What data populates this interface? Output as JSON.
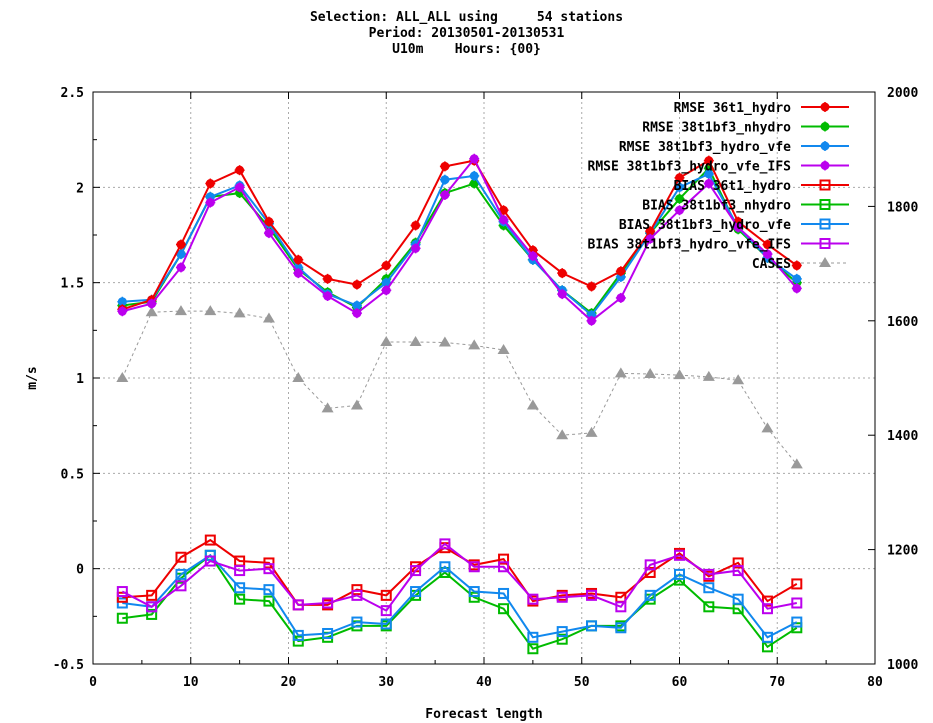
{
  "title": {
    "line1": "Selection: ALL_ALL using     54 stations",
    "line2": "Period: 20130501-20130531",
    "line3": "U10m    Hours: {00}"
  },
  "colors": {
    "red": "#ee0000",
    "green": "#00bb00",
    "blue": "#1188ee",
    "violet": "#bb00ee",
    "grey": "#999999",
    "grid": "#aaaaaa"
  },
  "chart_data": {
    "type": "line",
    "xlabel": "Forecast length",
    "ylabel": "m/s",
    "xlim": [
      0,
      80
    ],
    "ylim": [
      -0.5,
      2.5
    ],
    "y2lim": [
      1000,
      2000
    ],
    "xticks": [
      "0",
      "10",
      "20",
      "30",
      "40",
      "50",
      "60",
      "70",
      "80"
    ],
    "yticks": [
      "-0.5",
      "0",
      "0.5",
      "1",
      "1.5",
      "2",
      "2.5"
    ],
    "y2ticks": [
      "1000",
      "1200",
      "1400",
      "1600",
      "1800",
      "2000"
    ],
    "grid": true,
    "legend_position": "top-right",
    "x": [
      3,
      6,
      9,
      12,
      15,
      18,
      21,
      24,
      27,
      30,
      33,
      36,
      39,
      42,
      45,
      48,
      51,
      54,
      57,
      60,
      63,
      66,
      69,
      72
    ],
    "series": [
      {
        "name": "RMSE 36t1_hydro",
        "color": "red",
        "marker": "filled-circle",
        "axis": "y1",
        "values": [
          1.36,
          1.41,
          1.7,
          2.02,
          2.09,
          1.82,
          1.62,
          1.52,
          1.49,
          1.59,
          1.8,
          2.11,
          2.14,
          1.88,
          1.67,
          1.55,
          1.48,
          1.56,
          1.77,
          2.05,
          2.14,
          1.82,
          1.7,
          1.59
        ]
      },
      {
        "name": "RMSE 38t1bf3_nhydro",
        "color": "green",
        "marker": "filled-circle",
        "axis": "y1",
        "values": [
          1.38,
          1.4,
          1.65,
          1.95,
          1.97,
          1.79,
          1.57,
          1.45,
          1.37,
          1.52,
          1.71,
          1.97,
          2.02,
          1.8,
          1.62,
          1.46,
          1.34,
          1.55,
          1.76,
          1.94,
          2.1,
          1.78,
          1.63,
          1.5
        ]
      },
      {
        "name": "RMSE 38t1bf3_hydro_vfe",
        "color": "blue",
        "marker": "filled-circle",
        "axis": "y1",
        "values": [
          1.4,
          1.41,
          1.65,
          1.95,
          2.01,
          1.81,
          1.58,
          1.44,
          1.38,
          1.5,
          1.7,
          2.04,
          2.06,
          1.82,
          1.62,
          1.46,
          1.33,
          1.53,
          1.76,
          2.0,
          2.07,
          1.79,
          1.63,
          1.52
        ]
      },
      {
        "name": "RMSE 38t1bf3_hydro_vfe_IFS",
        "color": "violet",
        "marker": "filled-circle",
        "axis": "y1",
        "values": [
          1.35,
          1.39,
          1.58,
          1.92,
          2.0,
          1.76,
          1.55,
          1.43,
          1.34,
          1.46,
          1.68,
          1.96,
          2.15,
          1.83,
          1.64,
          1.44,
          1.3,
          1.42,
          1.73,
          1.88,
          2.02,
          1.79,
          1.65,
          1.47
        ]
      },
      {
        "name": "BIAS 36t1_hydro",
        "color": "red",
        "marker": "open-square",
        "axis": "y1",
        "values": [
          -0.15,
          -0.14,
          0.06,
          0.15,
          0.04,
          0.03,
          -0.19,
          -0.19,
          -0.11,
          -0.14,
          0.01,
          0.11,
          0.02,
          0.05,
          -0.17,
          -0.14,
          -0.13,
          -0.15,
          -0.02,
          0.08,
          -0.04,
          0.03,
          -0.17,
          -0.08
        ]
      },
      {
        "name": "BIAS 38t1bf3_nhydro",
        "color": "green",
        "marker": "open-square",
        "axis": "y1",
        "values": [
          -0.26,
          -0.24,
          -0.05,
          0.07,
          -0.16,
          -0.17,
          -0.38,
          -0.36,
          -0.3,
          -0.3,
          -0.14,
          -0.02,
          -0.15,
          -0.21,
          -0.42,
          -0.37,
          -0.3,
          -0.3,
          -0.16,
          -0.06,
          -0.2,
          -0.21,
          -0.41,
          -0.31
        ]
      },
      {
        "name": "BIAS 38t1bf3_hydro_vfe",
        "color": "blue",
        "marker": "open-square",
        "axis": "y1",
        "values": [
          -0.18,
          -0.2,
          -0.03,
          0.07,
          -0.1,
          -0.11,
          -0.35,
          -0.34,
          -0.28,
          -0.29,
          -0.12,
          0.01,
          -0.12,
          -0.13,
          -0.36,
          -0.33,
          -0.3,
          -0.31,
          -0.14,
          -0.03,
          -0.1,
          -0.16,
          -0.36,
          -0.28
        ]
      },
      {
        "name": "BIAS 38t1bf3_hydro_vfe_IFS",
        "color": "violet",
        "marker": "open-square",
        "axis": "y1",
        "values": [
          -0.12,
          -0.2,
          -0.09,
          0.04,
          -0.01,
          0.0,
          -0.19,
          -0.18,
          -0.14,
          -0.22,
          -0.01,
          0.13,
          0.01,
          0.01,
          -0.16,
          -0.15,
          -0.14,
          -0.2,
          0.02,
          0.07,
          -0.03,
          -0.01,
          -0.21,
          -0.18
        ]
      },
      {
        "name": "CASES",
        "color": "grey",
        "marker": "filled-triangle",
        "dashed": true,
        "axis": "y2",
        "values": [
          1500,
          1615,
          1617,
          1617,
          1613,
          1604,
          1500,
          1447,
          1452,
          1563,
          1563,
          1562,
          1557,
          1549,
          1452,
          1400,
          1404,
          1508,
          1507,
          1505,
          1502,
          1496,
          1412,
          1349
        ]
      }
    ]
  }
}
